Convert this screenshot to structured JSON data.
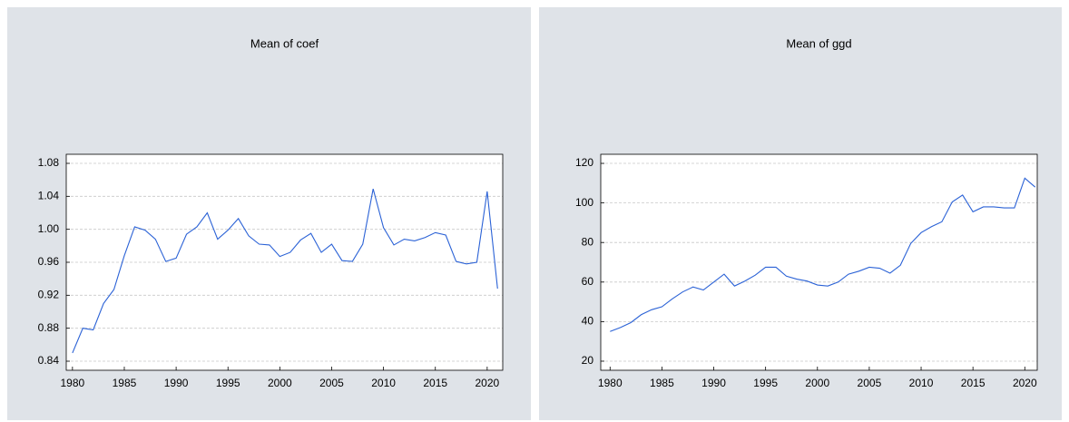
{
  "chart_data": [
    {
      "type": "line",
      "title": "Mean of coef",
      "x": [
        1980,
        1981,
        1982,
        1983,
        1984,
        1985,
        1986,
        1987,
        1988,
        1989,
        1990,
        1991,
        1992,
        1993,
        1994,
        1995,
        1996,
        1997,
        1998,
        1999,
        2000,
        2001,
        2002,
        2003,
        2004,
        2005,
        2006,
        2007,
        2008,
        2009,
        2010,
        2011,
        2012,
        2013,
        2014,
        2015,
        2016,
        2017,
        2018,
        2019,
        2020,
        2021
      ],
      "values": [
        0.85,
        0.88,
        0.878,
        0.91,
        0.927,
        0.968,
        1.003,
        0.999,
        0.988,
        0.961,
        0.965,
        0.994,
        1.003,
        1.02,
        0.988,
        0.999,
        1.013,
        0.992,
        0.982,
        0.981,
        0.967,
        0.972,
        0.987,
        0.995,
        0.972,
        0.982,
        0.962,
        0.961,
        0.982,
        1.049,
        1.002,
        0.981,
        0.988,
        0.986,
        0.99,
        0.996,
        0.993,
        0.961,
        0.958,
        0.96,
        1.046,
        0.928
      ],
      "color": "#2b62d6",
      "xlim": [
        1979.4,
        2021.5
      ],
      "xticks": [
        1980,
        1985,
        1990,
        1995,
        2000,
        2005,
        2010,
        2015,
        2020
      ],
      "ylim": [
        0.829,
        1.091
      ],
      "yticks": [
        0.84,
        0.88,
        0.92,
        0.96,
        {
          "value": 1.0,
          "label": "1.00"
        },
        1.04,
        1.08
      ],
      "grid": true
    },
    {
      "type": "line",
      "title": "Mean of ggd",
      "x": [
        1980,
        1981,
        1982,
        1983,
        1984,
        1985,
        1986,
        1987,
        1988,
        1989,
        1990,
        1991,
        1992,
        1993,
        1994,
        1995,
        1996,
        1997,
        1998,
        1999,
        2000,
        2001,
        2002,
        2003,
        2004,
        2005,
        2006,
        2007,
        2008,
        2009,
        2010,
        2011,
        2012,
        2013,
        2014,
        2015,
        2016,
        2017,
        2018,
        2019,
        2020,
        2021
      ],
      "values": [
        35,
        37,
        39.5,
        43.5,
        46,
        47.5,
        51.5,
        55,
        57.5,
        56,
        60,
        64,
        58,
        60.5,
        63.5,
        67.5,
        67.5,
        63,
        61.5,
        60.5,
        58.5,
        58,
        60,
        64,
        65.5,
        67.5,
        67,
        64.5,
        68.5,
        79.5,
        85,
        88,
        90.5,
        100.5,
        104,
        95.5,
        98,
        98,
        97.5,
        97.5,
        112.5,
        108
      ],
      "color": "#2b62d6",
      "xlim": [
        1979.1,
        2021.2
      ],
      "xticks": [
        1980,
        1985,
        1990,
        1995,
        2000,
        2005,
        2010,
        2015,
        2020
      ],
      "ylim": [
        15.4,
        124.6
      ],
      "yticks": [
        20,
        40,
        60,
        80,
        100,
        120
      ],
      "grid": true
    }
  ]
}
